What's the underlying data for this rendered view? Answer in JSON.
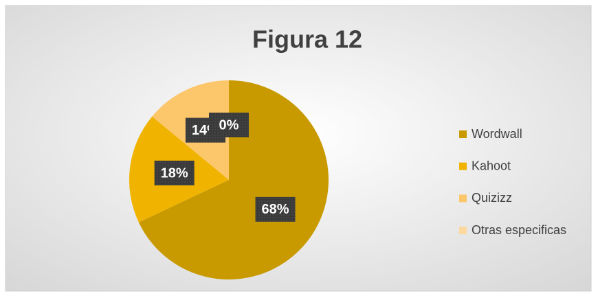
{
  "chart_data": {
    "type": "pie",
    "title": "Figura 12",
    "categories": [
      "Wordwall",
      "Kahoot",
      "Quizizz",
      "Otras especificas"
    ],
    "values": [
      68,
      18,
      14,
      0
    ],
    "value_labels": [
      "68%",
      "18%",
      "14%",
      "0%"
    ],
    "colors": [
      "#c89a00",
      "#f0b400",
      "#fcc66a",
      "#fdd9a0"
    ],
    "legend": "right"
  }
}
